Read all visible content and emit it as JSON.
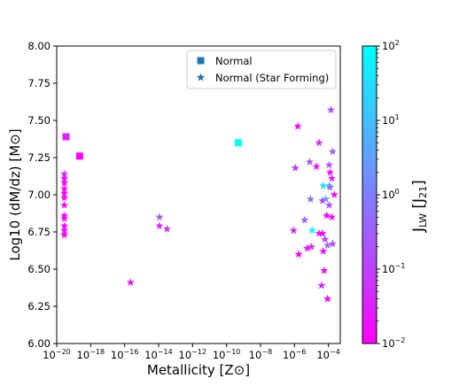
{
  "chart_data": {
    "type": "scatter",
    "xlabel": "Metallicity [Z⊙]",
    "ylabel": "Log10 (dM/dz) [M⊙]",
    "xscale": "log",
    "xlim_exp": [
      -20,
      -3.3
    ],
    "ylim": [
      6.0,
      8.0
    ],
    "x_ticks": [
      {
        "exp": -20,
        "label": "10",
        "sup": "−20"
      },
      {
        "exp": -18,
        "label": "10",
        "sup": "−18"
      },
      {
        "exp": -16,
        "label": "10",
        "sup": "−16"
      },
      {
        "exp": -14,
        "label": "10",
        "sup": "−14"
      },
      {
        "exp": -12,
        "label": "10",
        "sup": "−12"
      },
      {
        "exp": -10,
        "label": "10",
        "sup": "−10"
      },
      {
        "exp": -8,
        "label": "10",
        "sup": "−8"
      },
      {
        "exp": -6,
        "label": "10",
        "sup": "−6"
      },
      {
        "exp": -4,
        "label": "10",
        "sup": "−4"
      }
    ],
    "y_ticks": [
      {
        "v": 6.0,
        "label": "6.00"
      },
      {
        "v": 6.25,
        "label": "6.25"
      },
      {
        "v": 6.5,
        "label": "6.50"
      },
      {
        "v": 6.75,
        "label": "6.75"
      },
      {
        "v": 7.0,
        "label": "7.00"
      },
      {
        "v": 7.25,
        "label": "7.25"
      },
      {
        "v": 7.5,
        "label": "7.50"
      },
      {
        "v": 7.75,
        "label": "7.75"
      },
      {
        "v": 8.0,
        "label": "8.00"
      }
    ],
    "legend": {
      "placement": "top-right",
      "entries": [
        {
          "label": "Normal",
          "marker": "square",
          "color": "#1f77b4"
        },
        {
          "label": "Normal (Star Forming)",
          "marker": "star",
          "color": "#1f77b4"
        }
      ]
    },
    "colorbar": {
      "label": "J",
      "label_sub_1": "LW",
      "label_mid": " [J",
      "label_sub_2": "21",
      "label_end": "]",
      "scale": "log",
      "range_exp": [
        -2,
        2
      ],
      "colors": [
        "#ff00ff",
        "#00ffff"
      ],
      "ticks": [
        {
          "exp": 2,
          "label": "10",
          "sup": "2"
        },
        {
          "exp": 1,
          "label": "10",
          "sup": "1"
        },
        {
          "exp": 0,
          "label": "10",
          "sup": "0"
        },
        {
          "exp": -1,
          "label": "10",
          "sup": "−1"
        },
        {
          "exp": -2,
          "label": "10",
          "sup": "−2"
        }
      ]
    },
    "series": [
      {
        "name": "Normal",
        "marker": "square",
        "points": [
          {
            "log_x": -19.45,
            "y": 7.39,
            "log_j": -1.5
          },
          {
            "log_x": -18.65,
            "y": 7.26,
            "log_j": -2.0
          },
          {
            "log_x": -9.3,
            "y": 7.35,
            "log_j": 2.0
          }
        ]
      },
      {
        "name": "Normal (Star Forming)",
        "marker": "star",
        "points": [
          {
            "log_x": -19.55,
            "y": 7.14,
            "log_j": -1.3
          },
          {
            "log_x": -19.55,
            "y": 7.11,
            "log_j": -1.8
          },
          {
            "log_x": -19.55,
            "y": 7.08,
            "log_j": -2.0
          },
          {
            "log_x": -19.55,
            "y": 7.04,
            "log_j": -2.0
          },
          {
            "log_x": -19.55,
            "y": 7.01,
            "log_j": -1.9
          },
          {
            "log_x": -19.55,
            "y": 6.98,
            "log_j": -2.0
          },
          {
            "log_x": -19.55,
            "y": 6.93,
            "log_j": -2.0
          },
          {
            "log_x": -19.55,
            "y": 6.86,
            "log_j": -1.9
          },
          {
            "log_x": -19.55,
            "y": 6.84,
            "log_j": -2.0
          },
          {
            "log_x": -19.55,
            "y": 6.79,
            "log_j": -2.0
          },
          {
            "log_x": -19.55,
            "y": 6.76,
            "log_j": -1.8
          },
          {
            "log_x": -19.55,
            "y": 6.73,
            "log_j": -2.0
          },
          {
            "log_x": -15.65,
            "y": 6.41,
            "log_j": -1.7
          },
          {
            "log_x": -13.95,
            "y": 6.85,
            "log_j": -0.6
          },
          {
            "log_x": -13.95,
            "y": 6.79,
            "log_j": -1.5
          },
          {
            "log_x": -13.5,
            "y": 6.77,
            "log_j": -1.3
          },
          {
            "log_x": -6.05,
            "y": 6.76,
            "log_j": -1.5
          },
          {
            "log_x": -5.95,
            "y": 7.18,
            "log_j": -1.2
          },
          {
            "log_x": -5.8,
            "y": 7.46,
            "log_j": -2.0
          },
          {
            "log_x": -5.75,
            "y": 6.6,
            "log_j": -2.0
          },
          {
            "log_x": -5.4,
            "y": 6.83,
            "log_j": -0.5
          },
          {
            "log_x": -5.25,
            "y": 6.64,
            "log_j": -1.6
          },
          {
            "log_x": -5.1,
            "y": 7.22,
            "log_j": -0.6
          },
          {
            "log_x": -5.05,
            "y": 6.97,
            "log_j": -0.2
          },
          {
            "log_x": -5.0,
            "y": 6.65,
            "log_j": -1.4
          },
          {
            "log_x": -4.95,
            "y": 6.76,
            "log_j": 2.0
          },
          {
            "log_x": -4.7,
            "y": 7.19,
            "log_j": -1.8
          },
          {
            "log_x": -4.55,
            "y": 7.35,
            "log_j": -1.5
          },
          {
            "log_x": -4.55,
            "y": 6.74,
            "log_j": -1.4
          },
          {
            "log_x": -4.4,
            "y": 6.39,
            "log_j": -1.3
          },
          {
            "log_x": -4.35,
            "y": 6.74,
            "log_j": -2.0
          },
          {
            "log_x": -4.35,
            "y": 6.96,
            "log_j": -0.9
          },
          {
            "log_x": -4.3,
            "y": 7.06,
            "log_j": 1.5
          },
          {
            "log_x": -4.3,
            "y": 6.62,
            "log_j": -1.8
          },
          {
            "log_x": -4.25,
            "y": 6.49,
            "log_j": -1.7
          },
          {
            "log_x": -4.2,
            "y": 6.7,
            "log_j": -0.9
          },
          {
            "log_x": -4.15,
            "y": 6.97,
            "log_j": 0.5
          },
          {
            "log_x": -4.1,
            "y": 6.86,
            "log_j": -1.9
          },
          {
            "log_x": -4.05,
            "y": 6.66,
            "log_j": -0.3
          },
          {
            "log_x": -4.05,
            "y": 6.3,
            "log_j": -2.0
          },
          {
            "log_x": -3.95,
            "y": 7.2,
            "log_j": -0.6
          },
          {
            "log_x": -3.95,
            "y": 7.06,
            "log_j": 0.8
          },
          {
            "log_x": -3.95,
            "y": 6.93,
            "log_j": -0.8
          },
          {
            "log_x": -3.9,
            "y": 7.15,
            "log_j": -1.9
          },
          {
            "log_x": -3.9,
            "y": 7.05,
            "log_j": -0.3
          },
          {
            "log_x": -3.85,
            "y": 7.57,
            "log_j": -0.9
          },
          {
            "log_x": -3.8,
            "y": 7.11,
            "log_j": -1.6
          },
          {
            "log_x": -3.8,
            "y": 6.85,
            "log_j": -1.8
          },
          {
            "log_x": -3.75,
            "y": 7.29,
            "log_j": -0.4
          },
          {
            "log_x": -3.75,
            "y": 6.67,
            "log_j": -0.7
          },
          {
            "log_x": -3.65,
            "y": 7.0,
            "log_j": -2.0
          }
        ]
      }
    ]
  }
}
